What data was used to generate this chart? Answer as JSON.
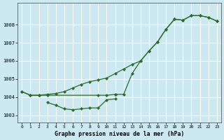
{
  "title": "Graphe pression niveau de la mer (hPa)",
  "background_color": "#cce8f0",
  "line_color": "#2d6a2d",
  "grid_color": "#b0d8e0",
  "xlim": [
    -0.5,
    23.5
  ],
  "ylim": [
    1002.6,
    1009.2
  ],
  "yticks": [
    1003,
    1004,
    1005,
    1006,
    1007,
    1008
  ],
  "xticks": [
    0,
    1,
    2,
    3,
    4,
    5,
    6,
    7,
    8,
    9,
    10,
    11,
    12,
    13,
    14,
    15,
    16,
    17,
    18,
    19,
    20,
    21,
    22,
    23
  ],
  "series_flat_x": [
    0,
    1,
    2,
    3,
    9,
    10,
    11
  ],
  "series_flat_y": [
    1004.3,
    1004.1,
    1004.1,
    1004.1,
    1004.1,
    1004.1,
    1004.15
  ],
  "series_dip_x": [
    3,
    4,
    5,
    6,
    7,
    8,
    9,
    10,
    11
  ],
  "series_dip_y": [
    1003.7,
    1003.55,
    1003.35,
    1003.3,
    1003.35,
    1003.4,
    1003.4,
    1003.85,
    1003.9
  ],
  "series_rise_x": [
    0,
    1,
    2,
    3,
    4,
    5,
    6,
    7,
    8,
    9,
    10,
    11,
    12,
    13,
    14,
    15,
    16,
    17,
    18,
    19,
    20,
    21,
    22,
    23
  ],
  "series_rise_y": [
    1004.3,
    1004.1,
    1004.1,
    1004.15,
    1004.2,
    1004.3,
    1004.5,
    1004.7,
    1004.85,
    1004.95,
    1005.05,
    1005.3,
    1005.55,
    1005.8,
    1006.0,
    1006.55,
    1007.05,
    1007.75,
    1008.3,
    1008.25,
    1008.5,
    1008.5,
    1008.4,
    1008.2
  ],
  "series_fast_x": [
    11,
    12,
    13,
    14,
    15,
    16,
    17,
    18,
    19,
    20,
    21,
    22,
    23
  ],
  "series_fast_y": [
    1004.15,
    1004.15,
    1005.3,
    1006.0,
    1006.55,
    1007.05,
    1007.75,
    1008.3,
    1008.25,
    1008.5,
    1008.5,
    1008.4,
    1008.2
  ]
}
